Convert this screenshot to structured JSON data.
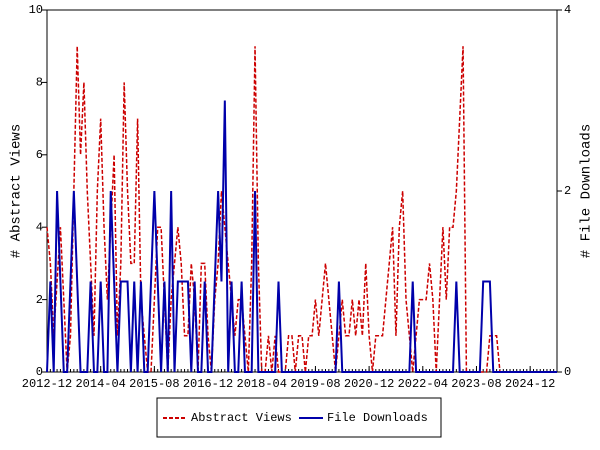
{
  "chart_data": {
    "type": "line",
    "ylabel": "# Abstract Views",
    "y2label": "# File Downloads",
    "x": [
      "2012-12",
      "2013-01",
      "2013-02",
      "2013-03",
      "2013-04",
      "2013-05",
      "2013-06",
      "2013-07",
      "2013-08",
      "2013-09",
      "2013-10",
      "2013-11",
      "2013-12",
      "2014-01",
      "2014-02",
      "2014-03",
      "2014-04",
      "2014-05",
      "2014-06",
      "2014-07",
      "2014-08",
      "2014-09",
      "2014-10",
      "2014-11",
      "2014-12",
      "2015-01",
      "2015-02",
      "2015-03",
      "2015-04",
      "2015-05",
      "2015-06",
      "2015-07",
      "2015-08",
      "2015-09",
      "2015-10",
      "2015-11",
      "2015-12",
      "2016-01",
      "2016-02",
      "2016-03",
      "2016-04",
      "2016-05",
      "2016-06",
      "2016-07",
      "2016-08",
      "2016-09",
      "2016-10",
      "2016-11",
      "2016-12",
      "2017-01",
      "2017-02",
      "2017-03",
      "2017-04",
      "2017-05",
      "2017-06",
      "2017-07",
      "2017-08",
      "2017-09",
      "2017-10",
      "2017-11",
      "2017-12",
      "2018-01",
      "2018-02",
      "2018-03",
      "2018-04",
      "2018-05",
      "2018-06",
      "2018-07",
      "2018-08",
      "2018-09",
      "2018-10",
      "2018-11",
      "2018-12",
      "2019-01",
      "2019-02",
      "2019-03",
      "2019-04",
      "2019-05",
      "2019-06",
      "2019-07",
      "2019-08",
      "2019-09",
      "2019-10",
      "2019-11",
      "2019-12",
      "2020-01",
      "2020-02",
      "2020-03",
      "2020-04",
      "2020-05",
      "2020-06",
      "2020-07",
      "2020-08",
      "2020-09",
      "2020-10",
      "2020-11",
      "2020-12",
      "2021-01",
      "2021-02",
      "2021-03",
      "2021-04",
      "2021-05",
      "2021-06",
      "2021-07",
      "2021-08",
      "2021-09",
      "2021-10",
      "2021-11",
      "2021-12",
      "2022-01",
      "2022-02",
      "2022-03",
      "2022-04",
      "2022-05",
      "2022-06",
      "2022-07",
      "2022-08",
      "2022-09",
      "2022-10",
      "2022-11",
      "2022-12",
      "2023-01",
      "2023-02",
      "2023-03",
      "2023-04",
      "2023-05",
      "2023-06",
      "2023-07",
      "2023-08",
      "2023-09",
      "2023-10",
      "2023-11",
      "2023-12",
      "2024-01",
      "2024-02",
      "2024-03",
      "2024-04",
      "2024-05",
      "2024-06",
      "2024-07",
      "2024-08",
      "2024-09",
      "2024-10",
      "2024-11",
      "2024-12",
      "2025-01",
      "2025-02",
      "2025-03",
      "2025-04",
      "2025-05",
      "2025-06",
      "2025-07",
      "2025-08"
    ],
    "series": [
      {
        "name": "Abstract Views",
        "color": "#cc0000",
        "dash": true,
        "values": [
          4,
          3,
          1,
          2.5,
          4,
          2,
          0,
          1,
          5,
          9,
          6,
          8,
          5,
          3,
          1,
          5,
          7,
          4,
          2,
          4,
          6,
          1,
          3,
          8,
          5,
          3,
          3,
          7,
          2,
          1,
          0,
          0,
          2,
          4,
          4,
          2,
          0,
          2,
          3,
          4,
          3,
          1,
          1,
          3,
          2,
          0,
          3,
          3,
          1,
          0,
          2,
          3,
          5,
          4,
          3,
          2,
          1,
          2,
          2,
          1,
          0,
          3,
          9,
          3,
          0,
          0,
          1,
          0,
          1,
          0,
          0,
          0,
          1,
          1,
          0,
          1,
          1,
          0,
          1,
          1,
          2,
          1,
          2,
          3,
          2,
          1,
          0,
          1,
          2,
          1,
          1,
          2,
          1,
          2,
          1,
          3,
          1,
          0,
          1,
          1,
          1,
          2,
          3,
          4,
          1,
          4,
          5,
          2,
          1,
          0,
          1,
          2,
          2,
          2,
          3,
          2,
          0,
          2,
          4,
          2,
          4,
          4,
          5,
          7,
          9,
          0,
          0,
          0,
          0,
          0,
          0,
          0,
          1,
          1,
          1,
          0,
          0,
          0,
          0,
          0,
          0,
          0,
          0,
          0,
          0,
          0,
          0,
          0,
          0,
          0,
          0,
          0,
          0
        ]
      },
      {
        "name": "File Downloads",
        "color": "#0000aa",
        "axis": "y2",
        "values": [
          0,
          1,
          0,
          2,
          1,
          0,
          0,
          1,
          2,
          1,
          0,
          0,
          0,
          1,
          0,
          0,
          1,
          0,
          0,
          2,
          1,
          0,
          1,
          1,
          1,
          0,
          1,
          0,
          1,
          0,
          0,
          1,
          2,
          1,
          0,
          1,
          0,
          2,
          0,
          1,
          1,
          1,
          1,
          0,
          1,
          0,
          0,
          1,
          0,
          0,
          1,
          2,
          1,
          3,
          0,
          1,
          0,
          0,
          1,
          0,
          0,
          0,
          2,
          0,
          0,
          0,
          0,
          0,
          0,
          1,
          0,
          0,
          0,
          0,
          0,
          0,
          0,
          0,
          0,
          0,
          0,
          0,
          0,
          0,
          0,
          0,
          0,
          1,
          0,
          0,
          0,
          0,
          0,
          0,
          0,
          0,
          0,
          0,
          0,
          0,
          0,
          0,
          0,
          0,
          0,
          0,
          0,
          0,
          0,
          1,
          0,
          0,
          0,
          0,
          0,
          0,
          0,
          0,
          0,
          0,
          0,
          0,
          1,
          0,
          0,
          0,
          0,
          0,
          0,
          0,
          1,
          1,
          1,
          0,
          0,
          0,
          0,
          0,
          0,
          0,
          0,
          0,
          0,
          0,
          0,
          0,
          0,
          0,
          0,
          0,
          0,
          0,
          0
        ]
      }
    ],
    "xticks": [
      "2012-12",
      "2014-04",
      "2015-08",
      "2016-12",
      "2018-04",
      "2019-08",
      "2020-12",
      "2022-04",
      "2023-08",
      "2024-12"
    ],
    "ylim": [
      0,
      10
    ],
    "yticks": [
      0,
      2,
      4,
      6,
      8,
      10
    ],
    "y2lim": [
      0,
      4
    ],
    "y2ticks": [
      0,
      2,
      4
    ],
    "legend": "bottom"
  }
}
